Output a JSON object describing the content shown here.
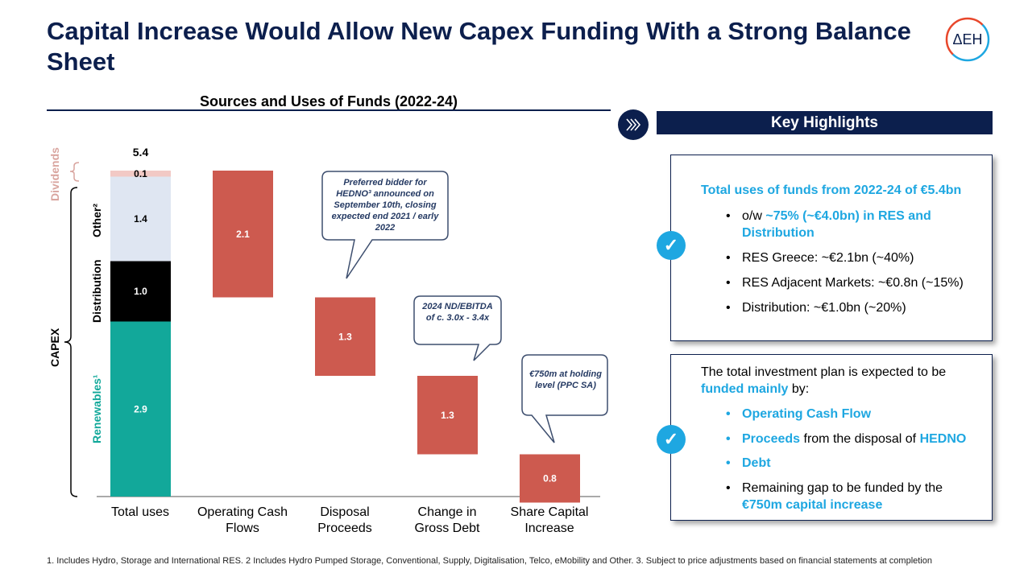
{
  "header": {
    "title": "Capital Increase Would Allow New Capex Funding With a Strong Balance Sheet",
    "logo_text": "ΔEH"
  },
  "chart": {
    "title": "Sources and Uses of Funds (2022-24)",
    "total_label": "5.4",
    "capex_label": "CAPEX",
    "dividends_label": "Dividends",
    "segment_labels": {
      "other": "Other²",
      "distribution": "Distribution",
      "renewables": "Renewables¹"
    },
    "callouts": {
      "hedno": "Preferred bidder for HEDNO³ announced on September 10th, closing expected end 2021 / early 2022",
      "ndebitda": "2024 ND/EBITDA of c. 3.0x - 3.4x",
      "holding": "€750m at holding level (PPC SA)"
    }
  },
  "chart_data": {
    "type": "bar",
    "title": "Sources and Uses of Funds (2022-24)",
    "categories": [
      "Total uses",
      "Operating Cash Flows",
      "Disposal Proceeds",
      "Change in Gross Debt",
      "Share Capital Increase"
    ],
    "total_uses_stack": [
      {
        "name": "Renewables¹",
        "value": 2.9,
        "color": "#12a89a"
      },
      {
        "name": "Distribution",
        "value": 1.0,
        "color": "#000000"
      },
      {
        "name": "Other²",
        "value": 1.4,
        "color": "#dfe6f2"
      },
      {
        "name": "Dividends",
        "value": 0.1,
        "color": "#f2c9c5"
      }
    ],
    "sources": [
      {
        "category": "Operating Cash Flows",
        "value": 2.1
      },
      {
        "category": "Disposal Proceeds",
        "value": 1.3
      },
      {
        "category": "Change in Gross Debt",
        "value": 1.3
      },
      {
        "category": "Share Capital Increase",
        "value": 0.8
      }
    ],
    "total": 5.4,
    "source_color": "#cd5a4f",
    "value_labels": [
      "2.9",
      "1.0",
      "1.4",
      "0.1",
      "2.1",
      "1.3",
      "1.3",
      "0.8"
    ]
  },
  "highlights": {
    "header": "Key Highlights",
    "box1": {
      "title": "Total uses of funds from 2022-24 of €5.4bn",
      "b1_pre": "o/w ",
      "b1_hl": "~75% (~€4.0bn) in RES and Distribution",
      "b2": "RES Greece: ~€2.1bn (~40%)",
      "b3": "RES Adjacent Markets: ~€0.8n (~15%)",
      "b4": "Distribution: ~€1.0bn (~20%)"
    },
    "box2": {
      "intro_pre": "The total investment plan is expected to be",
      "intro_hl": "funded mainly",
      "intro_post": " by:",
      "i1": "Operating Cash Flow",
      "i2_hl": "Proceeds",
      "i2_mid": " from the disposal of ",
      "i2_hl2": "HEDNO",
      "i3": "Debt",
      "i4_pre": "Remaining gap to be funded by the",
      "i4_hl": "€750m capital increase"
    }
  },
  "footnote": "1. Includes Hydro, Storage and International RES. 2 Includes Hydro Pumped Storage, Conventional, Supply, Digitalisation, Telco, eMobility and Other. 3. Subject to price adjustments based on financial statements at completion"
}
